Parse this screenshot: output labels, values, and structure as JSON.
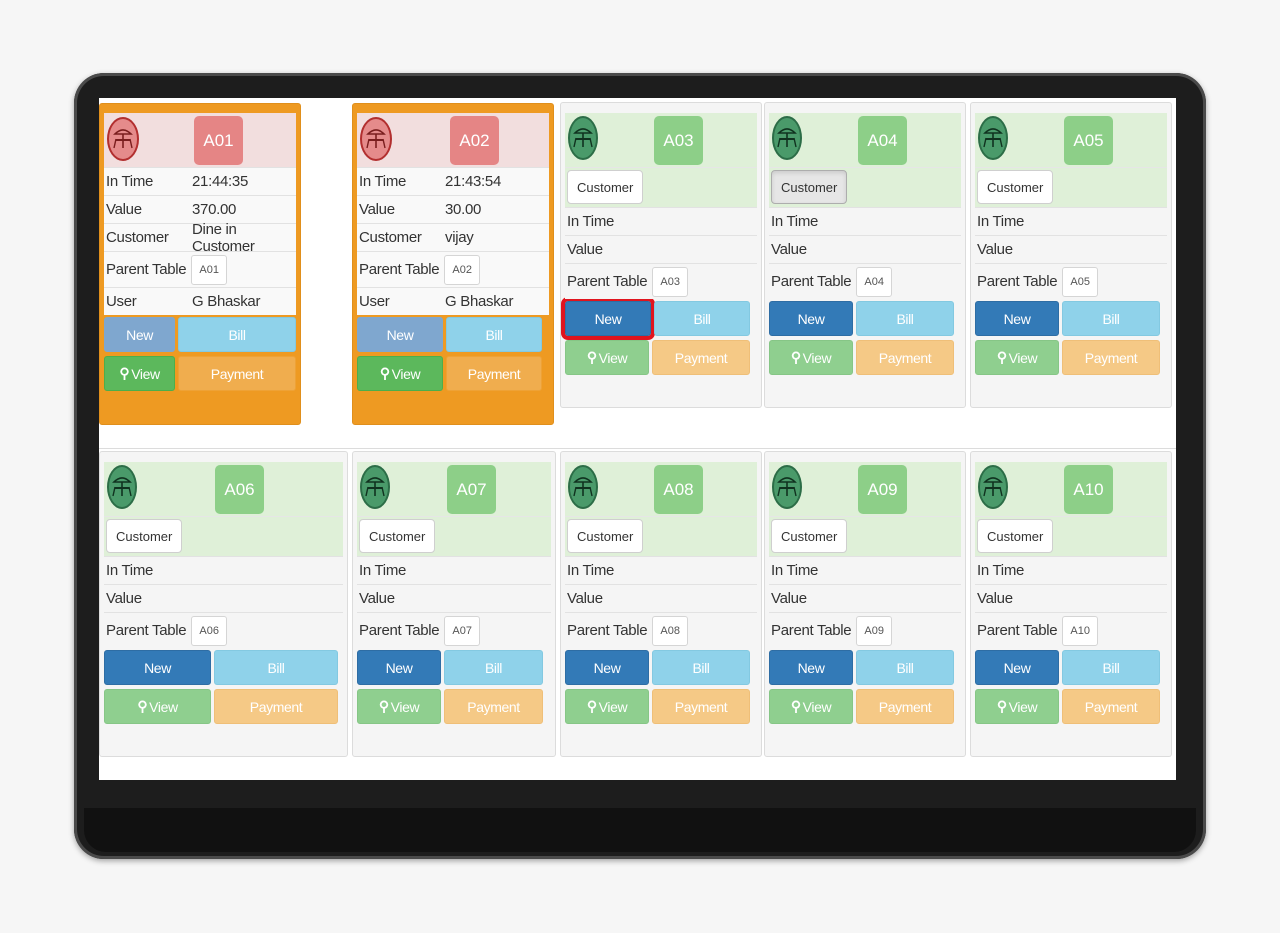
{
  "labels": {
    "in_time": "In Time",
    "value": "Value",
    "customer": "Customer",
    "parent_table": "Parent Table",
    "user": "User",
    "new": "New",
    "bill": "Bill",
    "view": "View",
    "payment": "Payment",
    "customer_button": "Customer"
  },
  "colors": {
    "occupied_frame": "#ee9a22",
    "occupied_header": "#f2dede",
    "free_header": "#dff0d8",
    "new_button": "#337ab7",
    "highlight": "#e0141e"
  },
  "tables": [
    {
      "id": "A01",
      "status": "occupied",
      "in_time": "21:44:35",
      "value": "370.00",
      "customer": "Dine in Customer",
      "parent_table": "A01",
      "user": "G Bhaskar"
    },
    {
      "id": "A02",
      "status": "occupied",
      "in_time": "21:43:54",
      "value": "30.00",
      "customer": "vijay",
      "parent_table": "A02",
      "user": "G Bhaskar"
    },
    {
      "id": "A03",
      "status": "free",
      "parent_table": "A03",
      "new_highlighted": true
    },
    {
      "id": "A04",
      "status": "free",
      "parent_table": "A04",
      "customer_pressed": true
    },
    {
      "id": "A05",
      "status": "free",
      "parent_table": "A05"
    },
    {
      "id": "A06",
      "status": "free",
      "parent_table": "A06"
    },
    {
      "id": "A07",
      "status": "free",
      "parent_table": "A07"
    },
    {
      "id": "A08",
      "status": "free",
      "parent_table": "A08"
    },
    {
      "id": "A09",
      "status": "free",
      "parent_table": "A09"
    },
    {
      "id": "A10",
      "status": "free",
      "parent_table": "A10"
    }
  ]
}
